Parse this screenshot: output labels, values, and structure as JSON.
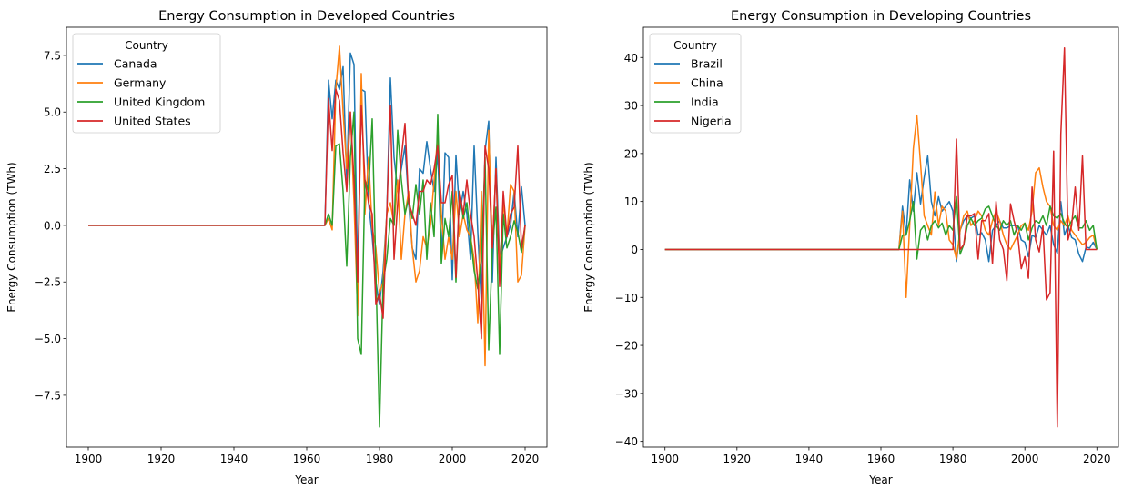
{
  "chart_data": [
    {
      "type": "line",
      "title": "Energy Consumption in Developed Countries",
      "xlabel": "Year",
      "ylabel": "Energy Consumption (TWh)",
      "xlim": [
        1894,
        2026
      ],
      "ylim": [
        -9.79,
        8.74
      ],
      "xticks": [
        1900,
        1920,
        1940,
        1960,
        1980,
        2000,
        2020
      ],
      "yticks": [
        -7.5,
        -5.0,
        -2.5,
        0.0,
        2.5,
        5.0,
        7.5
      ],
      "ytick_labels": [
        "−7.5",
        "−5.0",
        "−2.5",
        "0.0",
        "2.5",
        "5.0",
        "7.5"
      ],
      "grid": false,
      "legend": {
        "title": "Country",
        "placement": "top-left"
      },
      "x": [
        1900,
        1965,
        1966,
        1967,
        1968,
        1969,
        1970,
        1971,
        1972,
        1973,
        1974,
        1975,
        1976,
        1977,
        1978,
        1979,
        1980,
        1981,
        1982,
        1983,
        1984,
        1985,
        1986,
        1987,
        1988,
        1989,
        1990,
        1991,
        1992,
        1993,
        1994,
        1995,
        1996,
        1997,
        1998,
        1999,
        2000,
        2001,
        2002,
        2003,
        2004,
        2005,
        2006,
        2007,
        2008,
        2009,
        2010,
        2011,
        2012,
        2013,
        2014,
        2015,
        2016,
        2017,
        2018,
        2019,
        2020
      ],
      "series": [
        {
          "name": "Canada",
          "color": "#1f77b4",
          "values": [
            0,
            0,
            6.4,
            4.7,
            6.4,
            6.0,
            7.0,
            2.0,
            7.6,
            7.1,
            -2.4,
            6.0,
            5.9,
            1.0,
            -0.5,
            -2.5,
            -3.5,
            -2.0,
            0.5,
            6.5,
            3.0,
            1.5,
            2.5,
            3.5,
            1.0,
            -1.0,
            -1.5,
            2.5,
            2.3,
            3.7,
            2.5,
            1.5,
            3.2,
            -1.5,
            3.2,
            3.0,
            -2.4,
            3.1,
            0.5,
            1.5,
            0.5,
            -1.5,
            3.5,
            -0.3,
            -3.5,
            3.3,
            4.6,
            -2.5,
            3.0,
            -1.5,
            -1.0,
            -0.5,
            0.0,
            1.5,
            -0.5,
            1.7,
            0
          ]
        },
        {
          "name": "Germany",
          "color": "#ff7f0e",
          "values": [
            0,
            0,
            0.3,
            -0.2,
            6.0,
            7.9,
            5.0,
            2.5,
            5.0,
            1.0,
            -4.0,
            6.7,
            0.5,
            3.0,
            -0.1,
            -1.0,
            -3.0,
            -2.5,
            0.5,
            1.0,
            0.0,
            2.0,
            -1.5,
            0.5,
            1.5,
            -1.0,
            -2.5,
            -2.0,
            -0.5,
            -1.0,
            0.0,
            2.0,
            4.0,
            0.5,
            -1.5,
            -0.5,
            -1.5,
            1.5,
            -0.5,
            0.5,
            -0.2,
            -0.5,
            -1.5,
            -4.3,
            1.5,
            -6.2,
            4.2,
            -1.0,
            2.5,
            -2.0,
            1.0,
            -0.5,
            1.8,
            1.5,
            -2.5,
            -2.2,
            0
          ]
        },
        {
          "name": "United Kingdom",
          "color": "#2ca02c",
          "values": [
            0,
            0,
            0.5,
            0.0,
            3.5,
            3.6,
            1.5,
            -1.8,
            3.0,
            5.0,
            -5.0,
            -5.7,
            2.0,
            1.5,
            4.7,
            -2.0,
            -8.9,
            -2.5,
            -1.5,
            0.3,
            0.0,
            4.2,
            2.0,
            0.5,
            1.2,
            0.3,
            1.8,
            0.5,
            2.0,
            -1.5,
            1.0,
            -0.5,
            4.9,
            -1.7,
            0.3,
            -0.5,
            1.5,
            -2.5,
            1.5,
            0.3,
            1.0,
            -0.5,
            -2.0,
            -2.8,
            -1.5,
            3.0,
            -5.5,
            -1.0,
            0.8,
            -5.7,
            0.5,
            -1.0,
            -0.5,
            0.2,
            -0.3,
            -1.2,
            0
          ]
        },
        {
          "name": "United States",
          "color": "#d62728",
          "values": [
            0,
            0,
            5.6,
            3.3,
            6.0,
            5.5,
            3.2,
            1.5,
            5.0,
            2.0,
            -2.5,
            5.3,
            2.0,
            1.0,
            0.5,
            -3.5,
            -3.0,
            -4.1,
            0.5,
            5.3,
            -1.5,
            1.0,
            3.0,
            4.5,
            1.0,
            0.5,
            0.0,
            1.5,
            1.5,
            2.0,
            1.8,
            2.5,
            3.5,
            1.0,
            1.0,
            1.8,
            2.2,
            -2.3,
            1.5,
            0.5,
            2.0,
            0.5,
            -0.5,
            -2.5,
            -5.0,
            3.5,
            2.5,
            -1.0,
            2.5,
            -2.7,
            1.5,
            -0.5,
            0.5,
            0.8,
            3.5,
            -1.0,
            0
          ]
        }
      ]
    },
    {
      "type": "line",
      "title": "Energy Consumption in Developing Countries",
      "xlabel": "Year",
      "ylabel": "Energy Consumption (TWh)",
      "xlim": [
        1894,
        2026
      ],
      "ylim": [
        -41.2,
        46.3
      ],
      "xticks": [
        1900,
        1920,
        1940,
        1960,
        1980,
        2000,
        2020
      ],
      "yticks": [
        -40,
        -30,
        -20,
        -10,
        0,
        10,
        20,
        30,
        40
      ],
      "ytick_labels": [
        "−40",
        "−30",
        "−20",
        "−10",
        "0",
        "10",
        "20",
        "30",
        "40"
      ],
      "grid": false,
      "legend": {
        "title": "Country",
        "placement": "top-left"
      },
      "x": [
        1900,
        1965,
        1966,
        1967,
        1968,
        1969,
        1970,
        1971,
        1972,
        1973,
        1974,
        1975,
        1976,
        1977,
        1978,
        1979,
        1980,
        1981,
        1982,
        1983,
        1984,
        1985,
        1986,
        1987,
        1988,
        1989,
        1990,
        1991,
        1992,
        1993,
        1994,
        1995,
        1996,
        1997,
        1998,
        1999,
        2000,
        2001,
        2002,
        2003,
        2004,
        2005,
        2006,
        2007,
        2008,
        2009,
        2010,
        2011,
        2012,
        2013,
        2014,
        2015,
        2016,
        2017,
        2018,
        2019,
        2020
      ],
      "series": [
        {
          "name": "Brazil",
          "color": "#1f77b4",
          "values": [
            0,
            0,
            9,
            3,
            14.5,
            8,
            16,
            9.5,
            15,
            19.5,
            10,
            7,
            11,
            8,
            9,
            10,
            8,
            -2.5,
            4,
            6,
            7,
            6.5,
            7,
            3,
            3.5,
            2,
            -2.5,
            4,
            5,
            6,
            4.5,
            4.5,
            5,
            5,
            5,
            2,
            1.5,
            -1.5,
            3,
            2.5,
            5,
            4,
            3,
            5,
            1,
            -0.8,
            10,
            3,
            5,
            2.5,
            2,
            -1,
            -2.5,
            0.5,
            0.3,
            1.5,
            0
          ]
        },
        {
          "name": "China",
          "color": "#ff7f0e",
          "values": [
            0,
            0,
            8,
            -10,
            5,
            21,
            28,
            18,
            7,
            5,
            3,
            12,
            5,
            9,
            8,
            2,
            1,
            -2,
            4,
            7,
            8,
            5,
            6,
            8,
            7,
            4,
            3,
            6,
            8,
            6,
            3,
            1,
            0,
            1.5,
            3,
            5,
            5.5,
            4,
            8,
            16,
            17,
            13,
            10,
            9,
            5,
            4,
            6,
            5,
            7,
            4,
            3,
            2,
            1,
            1.5,
            2.5,
            3,
            0
          ]
        },
        {
          "name": "India",
          "color": "#2ca02c",
          "values": [
            0,
            0,
            3,
            3,
            6,
            10,
            -2,
            4,
            5,
            2,
            5,
            6,
            4.5,
            5.5,
            3,
            5,
            4,
            11,
            -1,
            1,
            5,
            6.5,
            5,
            6,
            6.5,
            8.5,
            9,
            7,
            5,
            4,
            6,
            5,
            6,
            3,
            5,
            4,
            5.5,
            2,
            4.5,
            6,
            5.5,
            7,
            5,
            9,
            7,
            6.5,
            7.5,
            5.5,
            4.5,
            6,
            7,
            4.5,
            4.5,
            6,
            4,
            5,
            0
          ]
        },
        {
          "name": "Nigeria",
          "color": "#d62728",
          "values": [
            0,
            0,
            0,
            0,
            0,
            0,
            0,
            0,
            0,
            0,
            0,
            0,
            0,
            0,
            0,
            0,
            0,
            23,
            0,
            1,
            7,
            7,
            7.5,
            -2,
            6,
            6,
            7.5,
            -3,
            10,
            2,
            0,
            -6.5,
            9.5,
            6,
            3,
            -4,
            -1.5,
            -6,
            13,
            2,
            -0.5,
            5,
            -10.5,
            -9,
            20.5,
            -37,
            24,
            42,
            2,
            5,
            13,
            4,
            19.5,
            0,
            0,
            0,
            0
          ]
        }
      ]
    }
  ]
}
